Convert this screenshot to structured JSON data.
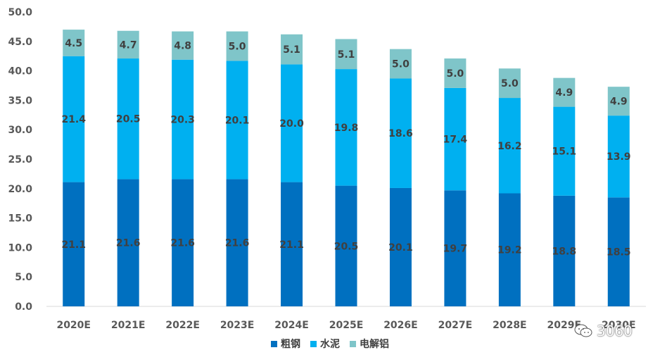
{
  "chart_data": {
    "type": "bar",
    "stacked": true,
    "categories": [
      "2020E",
      "2021E",
      "2022E",
      "2023E",
      "2024E",
      "2025E",
      "2026E",
      "2027E",
      "2028E",
      "2029E",
      "2030E"
    ],
    "series": [
      {
        "name": "粗钢",
        "color": "#0070C0",
        "values": [
          21.1,
          21.6,
          21.6,
          21.6,
          21.1,
          20.5,
          20.1,
          19.7,
          19.2,
          18.8,
          18.5
        ]
      },
      {
        "name": "水泥",
        "color": "#00B0F0",
        "values": [
          21.4,
          20.5,
          20.3,
          20.1,
          20.0,
          19.8,
          18.6,
          17.4,
          16.2,
          15.1,
          13.9
        ]
      },
      {
        "name": "电解铝",
        "color": "#7FC5C9",
        "values": [
          4.5,
          4.7,
          4.8,
          5.0,
          5.1,
          5.1,
          5.0,
          5.0,
          5.0,
          4.9,
          4.9
        ]
      }
    ],
    "ylim": [
      0,
      50
    ],
    "yticks": [
      "0.0",
      "5.0",
      "10.0",
      "15.0",
      "20.0",
      "25.0",
      "30.0",
      "35.0",
      "40.0",
      "45.0",
      "50.0"
    ],
    "legend_position": "bottom",
    "grid": false
  },
  "watermark": {
    "text": "3060",
    "icon": "wechat-icon"
  }
}
